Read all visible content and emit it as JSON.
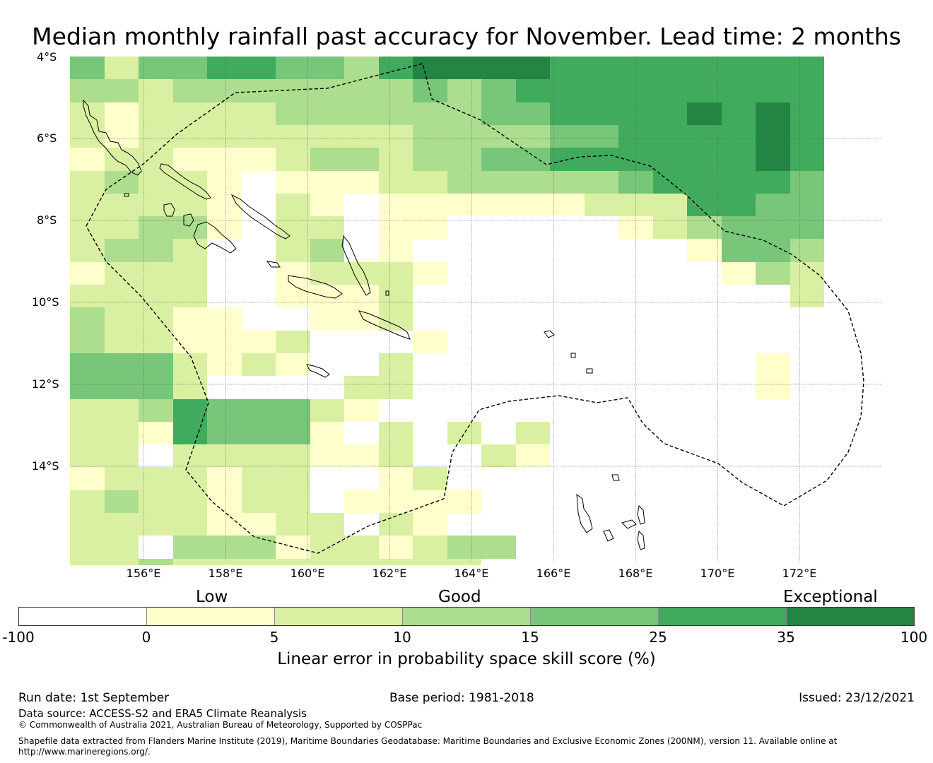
{
  "title": "Median monthly rainfall past accuracy for November. Lead time: 2 months",
  "map": {
    "lat_labels": [
      "4°S",
      "6°S",
      "8°S",
      "10°S",
      "12°S",
      "14°S"
    ],
    "lon_labels": [
      "156°E",
      "158°E",
      "160°E",
      "162°E",
      "164°E",
      "166°E",
      "168°E",
      "170°E",
      "172°E"
    ],
    "categories": [
      "Low",
      "Good",
      "Exceptional"
    ],
    "colors": [
      "#ffffff",
      "#ffffcc",
      "#d9f0a3",
      "#addd8e",
      "#78c679",
      "#41ab5d",
      "#238443"
    ],
    "grid_rows": [
      "4244554435666655555555",
      "3323333333434555555555",
      "2122223333334455556565",
      "2122222222333344555565",
      "1221112332334455555565",
      "2322101112233333455554",
      "2222102101111112225544",
      "2233102201100000123444",
      "2332002301000000001443",
      "1222001222100000000132",
      "2222001112000000000002",
      "3221100112000000000000",
      "3221112000100000000000",
      "4442121002000000000010",
      "4442000022000000000010",
      "2235444210000000000000",
      "2215444102020200000000",
      "2202222112002100000000",
      "1222122001200000000000",
      "2322122011110000000000",
      "2222112202100000000000",
      "2203331221233000000000",
      "2232222222220000000000",
      "1233302212100000000000",
      "3333320332210000000000",
      "3443222001120000000000",
      "1233221111220000000000",
      "3433221102220000000000",
      "3333332211200000000000"
    ]
  },
  "colorbar": {
    "ticks": [
      "-100",
      "0",
      "5",
      "10",
      "15",
      "25",
      "35",
      "100"
    ],
    "title": "Linear error in probability space skill score (%)"
  },
  "footer": {
    "run_date": "Run date: 1st September",
    "base_period": "Base period: 1981-2018",
    "issued": "Issued: 23/12/2021",
    "data_source": "Data source: ACCESS-S2 and ERA5 Climate Reanalysis",
    "copyright": "© Commonwealth of Australia 2021, Australian Bureau of Meteorology, Supported by COSPPac",
    "shapefile_line1": "Shapefile data extracted from Flanders Marine Institute (2019), Maritime Boundaries Geodatabase: Maritime Boundaries and Exclusive Economic Zones (200NM), version 11. Available online at",
    "shapefile_line2": "http://www.marineregions.org/."
  }
}
